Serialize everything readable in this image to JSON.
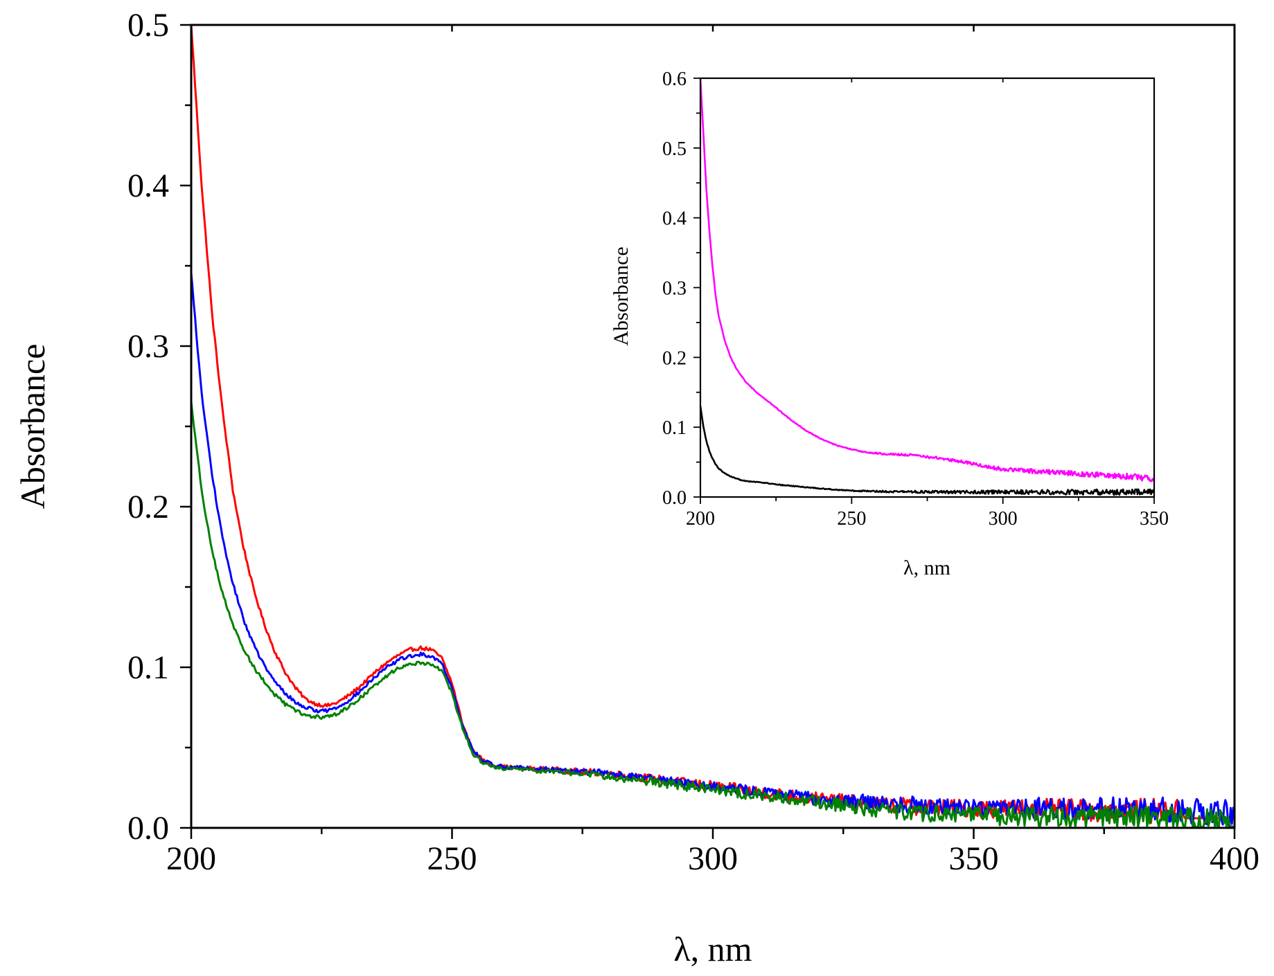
{
  "chart_data": [
    {
      "type": "line",
      "role": "main",
      "title": "",
      "xlabel": "λ, nm",
      "ylabel": "Absorbance",
      "xlim": [
        200,
        400
      ],
      "ylim": [
        0.0,
        0.5
      ],
      "x_ticks": [
        200,
        250,
        300,
        350,
        400
      ],
      "x_tick_labels": [
        "200",
        "250",
        "300",
        "350",
        "400"
      ],
      "y_ticks": [
        0.0,
        0.1,
        0.2,
        0.3,
        0.4,
        0.5
      ],
      "y_tick_labels": [
        "0.0",
        "0.1",
        "0.2",
        "0.3",
        "0.4",
        "0.5"
      ],
      "grid": false,
      "legend": "none",
      "series": [
        {
          "name": "red",
          "color": "#ff0000",
          "end_x": 390,
          "x": [
            200,
            202,
            204,
            206,
            208,
            210,
            212,
            214,
            216,
            218,
            220,
            222,
            224,
            226,
            228,
            230,
            232,
            234,
            236,
            238,
            240,
            242,
            244,
            246,
            248,
            250,
            252,
            254,
            256,
            258,
            260,
            265,
            270,
            275,
            280,
            285,
            290,
            295,
            300,
            310,
            320,
            330,
            340,
            350,
            360,
            370,
            380,
            390
          ],
          "y": [
            0.5,
            0.4,
            0.32,
            0.26,
            0.21,
            0.175,
            0.148,
            0.127,
            0.11,
            0.097,
            0.087,
            0.08,
            0.077,
            0.076,
            0.078,
            0.082,
            0.087,
            0.093,
            0.099,
            0.104,
            0.108,
            0.111,
            0.112,
            0.111,
            0.106,
            0.09,
            0.065,
            0.048,
            0.042,
            0.039,
            0.038,
            0.037,
            0.036,
            0.035,
            0.034,
            0.032,
            0.03,
            0.028,
            0.026,
            0.022,
            0.018,
            0.015,
            0.013,
            0.012,
            0.012,
            0.011,
            0.011,
            0.01
          ]
        },
        {
          "name": "blue",
          "color": "#0000ff",
          "end_x": 400,
          "x": [
            200,
            202,
            204,
            206,
            208,
            210,
            212,
            214,
            216,
            218,
            220,
            222,
            224,
            226,
            228,
            230,
            232,
            234,
            236,
            238,
            240,
            242,
            244,
            246,
            248,
            250,
            252,
            254,
            256,
            258,
            260,
            265,
            270,
            275,
            280,
            285,
            290,
            295,
            300,
            310,
            320,
            330,
            340,
            350,
            360,
            370,
            380,
            390,
            400
          ],
          "y": [
            0.345,
            0.27,
            0.22,
            0.18,
            0.152,
            0.13,
            0.114,
            0.101,
            0.091,
            0.084,
            0.078,
            0.075,
            0.073,
            0.073,
            0.075,
            0.079,
            0.084,
            0.09,
            0.096,
            0.101,
            0.105,
            0.107,
            0.108,
            0.107,
            0.103,
            0.087,
            0.064,
            0.048,
            0.042,
            0.039,
            0.038,
            0.037,
            0.036,
            0.035,
            0.034,
            0.032,
            0.03,
            0.028,
            0.026,
            0.022,
            0.018,
            0.016,
            0.014,
            0.013,
            0.013,
            0.012,
            0.012,
            0.011,
            0.009
          ]
        },
        {
          "name": "green",
          "color": "#008000",
          "end_x": 400,
          "x": [
            200,
            202,
            204,
            206,
            208,
            210,
            212,
            214,
            216,
            218,
            220,
            222,
            224,
            226,
            228,
            230,
            232,
            234,
            236,
            238,
            240,
            242,
            244,
            246,
            248,
            250,
            252,
            254,
            256,
            258,
            260,
            265,
            270,
            275,
            280,
            285,
            290,
            295,
            300,
            310,
            320,
            330,
            340,
            350,
            360,
            370,
            380,
            390,
            400
          ],
          "y": [
            0.265,
            0.21,
            0.172,
            0.146,
            0.126,
            0.112,
            0.1,
            0.091,
            0.083,
            0.077,
            0.073,
            0.07,
            0.069,
            0.069,
            0.071,
            0.075,
            0.08,
            0.085,
            0.091,
            0.096,
            0.1,
            0.102,
            0.103,
            0.102,
            0.098,
            0.084,
            0.062,
            0.046,
            0.04,
            0.038,
            0.037,
            0.036,
            0.035,
            0.034,
            0.032,
            0.03,
            0.028,
            0.026,
            0.024,
            0.02,
            0.016,
            0.012,
            0.009,
            0.008,
            0.007,
            0.007,
            0.006,
            0.006,
            0.005
          ]
        }
      ]
    },
    {
      "type": "line",
      "role": "inset",
      "title": "",
      "xlabel": "λ, nm",
      "ylabel": "Absorbance",
      "xlim": [
        200,
        350
      ],
      "ylim": [
        0.0,
        0.6
      ],
      "x_ticks": [
        200,
        250,
        300,
        350
      ],
      "x_tick_labels": [
        "200",
        "250",
        "300",
        "350"
      ],
      "y_ticks": [
        0.0,
        0.1,
        0.2,
        0.3,
        0.4,
        0.5,
        0.6
      ],
      "y_tick_labels": [
        "0.0",
        "0.1",
        "0.2",
        "0.3",
        "0.4",
        "0.5",
        "0.6"
      ],
      "grid": false,
      "legend": "none",
      "series": [
        {
          "name": "magenta",
          "color": "#ff00ff",
          "x": [
            200,
            201,
            202,
            203,
            204,
            205,
            206,
            208,
            210,
            212,
            215,
            218,
            220,
            225,
            230,
            235,
            240,
            245,
            250,
            255,
            260,
            270,
            280,
            290,
            295,
            300,
            310,
            320,
            330,
            340,
            345,
            350
          ],
          "y": [
            0.6,
            0.52,
            0.44,
            0.38,
            0.33,
            0.29,
            0.26,
            0.225,
            0.2,
            0.183,
            0.165,
            0.152,
            0.145,
            0.128,
            0.11,
            0.095,
            0.083,
            0.074,
            0.068,
            0.064,
            0.062,
            0.06,
            0.055,
            0.048,
            0.043,
            0.04,
            0.037,
            0.035,
            0.032,
            0.03,
            0.028,
            0.027
          ]
        },
        {
          "name": "black",
          "color": "#000000",
          "x": [
            200,
            201,
            202,
            203,
            204,
            205,
            206,
            208,
            210,
            212,
            215,
            220,
            225,
            230,
            240,
            250,
            260,
            280,
            300,
            320,
            340,
            350
          ],
          "y": [
            0.13,
            0.1,
            0.08,
            0.065,
            0.055,
            0.047,
            0.041,
            0.034,
            0.029,
            0.026,
            0.023,
            0.021,
            0.018,
            0.016,
            0.012,
            0.009,
            0.008,
            0.007,
            0.007,
            0.007,
            0.007,
            0.007
          ]
        }
      ]
    }
  ]
}
